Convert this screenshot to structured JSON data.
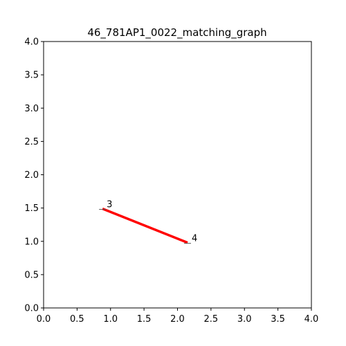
{
  "chart_data": {
    "type": "line",
    "title": "46_781AP1_0022_matching_graph",
    "xlabel": "",
    "ylabel": "",
    "xlim": [
      0.0,
      4.0
    ],
    "ylim": [
      0.0,
      4.0
    ],
    "xticks": [
      "0.0",
      "0.5",
      "1.0",
      "1.5",
      "2.0",
      "2.5",
      "3.0",
      "3.5",
      "4.0"
    ],
    "yticks": [
      "0.0",
      "0.5",
      "1.0",
      "1.5",
      "2.0",
      "2.5",
      "3.0",
      "3.5",
      "4.0"
    ],
    "grid": false,
    "series": [
      {
        "color": "#ff0000",
        "points": [
          {
            "x": 0.88,
            "y": 1.49,
            "label": "3"
          },
          {
            "x": 2.15,
            "y": 0.98,
            "label": "4"
          }
        ]
      }
    ]
  }
}
